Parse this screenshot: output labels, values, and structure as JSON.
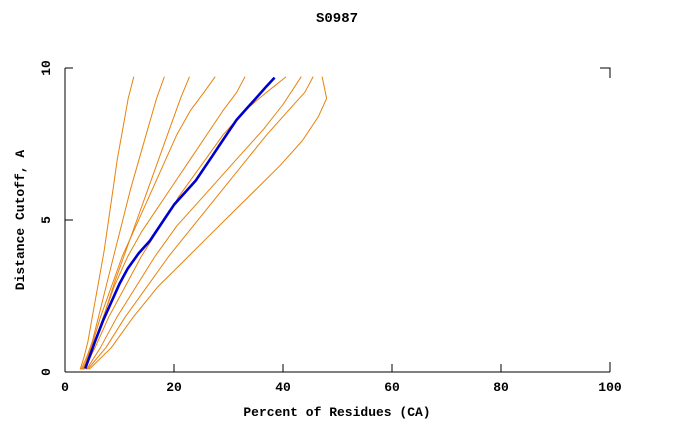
{
  "title": "S0987",
  "chart_data": {
    "type": "line",
    "title": "S0987",
    "xlabel": "Percent of Residues (CA)",
    "ylabel": "Distance Cutoff, A",
    "xlim": [
      0,
      100
    ],
    "ylim": [
      0,
      10
    ],
    "x_ticks": [
      "0",
      "20",
      "40",
      "60",
      "80",
      "100"
    ],
    "x_tick_values": [
      0,
      20,
      40,
      60,
      80,
      100
    ],
    "y_ticks": [
      "0",
      "5",
      "10"
    ],
    "y_tick_values": [
      0,
      5,
      10
    ],
    "grid": false,
    "legend": "none",
    "colors": {
      "model_line": "#0000cd",
      "other_lines": "#e8820c",
      "axis": "#000000",
      "background": "#ffffff"
    },
    "series": [
      {
        "name": "orange-1",
        "color": "#e8820c",
        "width": 1,
        "points": [
          [
            2.8,
            0.1
          ],
          [
            3.5,
            0.5
          ],
          [
            4.2,
            1
          ],
          [
            5.2,
            2
          ],
          [
            6.2,
            3
          ],
          [
            7.2,
            4
          ],
          [
            8.0,
            5
          ],
          [
            8.8,
            6
          ],
          [
            9.6,
            7
          ],
          [
            10.6,
            8
          ],
          [
            11.6,
            9
          ],
          [
            12.6,
            9.7
          ]
        ]
      },
      {
        "name": "orange-2",
        "color": "#e8820c",
        "width": 1,
        "points": [
          [
            3.0,
            0.1
          ],
          [
            4.0,
            0.5
          ],
          [
            5.0,
            1
          ],
          [
            6.4,
            2
          ],
          [
            7.8,
            3
          ],
          [
            9.2,
            4
          ],
          [
            10.6,
            5
          ],
          [
            12.0,
            6
          ],
          [
            13.6,
            7
          ],
          [
            15.2,
            8
          ],
          [
            16.8,
            9
          ],
          [
            18.2,
            9.7
          ]
        ]
      },
      {
        "name": "orange-3",
        "color": "#e8820c",
        "width": 1,
        "points": [
          [
            3.2,
            0.1
          ],
          [
            4.4,
            0.5
          ],
          [
            5.6,
            1
          ],
          [
            7.4,
            2
          ],
          [
            9.2,
            3
          ],
          [
            11.2,
            4
          ],
          [
            13.2,
            5
          ],
          [
            15.2,
            6
          ],
          [
            17.2,
            7
          ],
          [
            19.2,
            8
          ],
          [
            21.2,
            9
          ],
          [
            22.8,
            9.7
          ]
        ]
      },
      {
        "name": "orange-4",
        "color": "#e8820c",
        "width": 1,
        "points": [
          [
            3.3,
            0.1
          ],
          [
            4.8,
            0.8
          ],
          [
            6.5,
            1.8
          ],
          [
            8.5,
            2.8
          ],
          [
            10.5,
            3.8
          ],
          [
            13.0,
            4.8
          ],
          [
            15.5,
            5.8
          ],
          [
            18.0,
            6.8
          ],
          [
            20.5,
            7.8
          ],
          [
            23.0,
            8.6
          ],
          [
            25.5,
            9.2
          ],
          [
            27.5,
            9.7
          ]
        ]
      },
      {
        "name": "orange-5",
        "color": "#e8820c",
        "width": 1,
        "points": [
          [
            3.4,
            0.1
          ],
          [
            5.0,
            0.8
          ],
          [
            7.0,
            1.8
          ],
          [
            9.0,
            2.8
          ],
          [
            11.5,
            3.8
          ],
          [
            14.0,
            4.6
          ],
          [
            17.0,
            5.4
          ],
          [
            20.0,
            6.2
          ],
          [
            23.0,
            7.0
          ],
          [
            26.0,
            7.8
          ],
          [
            29.0,
            8.6
          ],
          [
            31.5,
            9.2
          ],
          [
            33.0,
            9.7
          ]
        ]
      },
      {
        "name": "orange-6",
        "color": "#e8820c",
        "width": 1,
        "points": [
          [
            3.6,
            0.1
          ],
          [
            5.5,
            0.8
          ],
          [
            8.0,
            1.8
          ],
          [
            11.0,
            2.8
          ],
          [
            14.0,
            3.8
          ],
          [
            17.5,
            4.8
          ],
          [
            21.0,
            5.8
          ],
          [
            25.0,
            6.8
          ],
          [
            29.0,
            7.8
          ],
          [
            33.0,
            8.6
          ],
          [
            37.0,
            9.2
          ],
          [
            40.5,
            9.7
          ]
        ]
      },
      {
        "name": "orange-7",
        "color": "#e8820c",
        "width": 1,
        "points": [
          [
            4.0,
            0.1
          ],
          [
            6.5,
            0.8
          ],
          [
            9.5,
            1.8
          ],
          [
            13.0,
            2.8
          ],
          [
            16.5,
            3.8
          ],
          [
            20.5,
            4.8
          ],
          [
            24.5,
            5.6
          ],
          [
            28.5,
            6.4
          ],
          [
            32.5,
            7.2
          ],
          [
            36.5,
            8.0
          ],
          [
            40.0,
            8.8
          ],
          [
            43.3,
            9.7
          ]
        ]
      },
      {
        "name": "orange-8",
        "color": "#e8820c",
        "width": 1,
        "points": [
          [
            4.2,
            0.1
          ],
          [
            7.5,
            0.8
          ],
          [
            11.0,
            1.8
          ],
          [
            15.0,
            2.8
          ],
          [
            19.0,
            3.8
          ],
          [
            23.5,
            4.8
          ],
          [
            28.0,
            5.8
          ],
          [
            32.5,
            6.8
          ],
          [
            37.0,
            7.8
          ],
          [
            41.0,
            8.6
          ],
          [
            44.0,
            9.2
          ],
          [
            45.5,
            9.7
          ]
        ]
      },
      {
        "name": "orange-9",
        "color": "#e8820c",
        "width": 1,
        "points": [
          [
            4.5,
            0.1
          ],
          [
            8.5,
            0.8
          ],
          [
            12.5,
            1.8
          ],
          [
            17.0,
            2.8
          ],
          [
            21.5,
            3.6
          ],
          [
            26.0,
            4.4
          ],
          [
            30.5,
            5.2
          ],
          [
            35.0,
            6.0
          ],
          [
            39.5,
            6.8
          ],
          [
            43.5,
            7.6
          ],
          [
            46.5,
            8.4
          ],
          [
            48.0,
            9.0
          ],
          [
            47.2,
            9.7
          ]
        ]
      },
      {
        "name": "model-blue",
        "color": "#0000cd",
        "width": 2.6,
        "points": [
          [
            3.8,
            0.15
          ],
          [
            4.5,
            0.5
          ],
          [
            5.5,
            1.0
          ],
          [
            7.0,
            1.7
          ],
          [
            8.5,
            2.3
          ],
          [
            10.0,
            2.9
          ],
          [
            11.5,
            3.4
          ],
          [
            13.5,
            3.9
          ],
          [
            15.5,
            4.3
          ],
          [
            17.0,
            4.7
          ],
          [
            18.5,
            5.1
          ],
          [
            20.0,
            5.5
          ],
          [
            22.0,
            5.9
          ],
          [
            24.0,
            6.3
          ],
          [
            25.5,
            6.7
          ],
          [
            27.0,
            7.1
          ],
          [
            28.5,
            7.5
          ],
          [
            30.0,
            7.9
          ],
          [
            31.5,
            8.3
          ],
          [
            33.5,
            8.7
          ],
          [
            35.5,
            9.1
          ],
          [
            37.0,
            9.4
          ],
          [
            38.3,
            9.65
          ]
        ]
      }
    ]
  }
}
